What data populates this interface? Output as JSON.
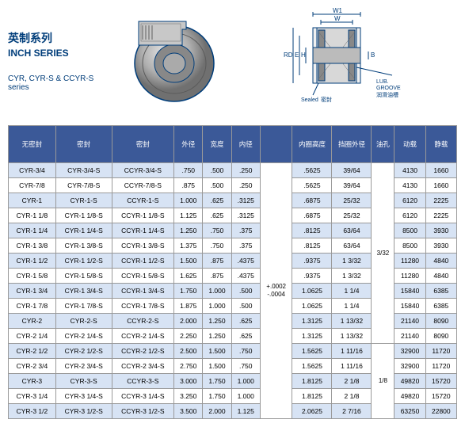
{
  "header": {
    "chinese_title": "英制系列",
    "inch_title": "INCH SERIES",
    "series_label": "CYR, CYR-S & CCYR-S series"
  },
  "diagram": {
    "w1": "W1",
    "w": "W",
    "rd": "RD",
    "e": "E",
    "h": "H",
    "b": "B",
    "sealed_en": "Sealed",
    "sealed_cn": "密封",
    "lub_en": "LUB. GROOVE",
    "lub_cn": "润滑油槽",
    "bearing_fill": "#cccccc",
    "bearing_stroke": "#003d7a",
    "diagram_stroke": "#003d7a"
  },
  "table": {
    "header_bg": "#3b5998",
    "row_alt_bg": "#d7e3f4",
    "headers": [
      "无密封",
      "密封",
      "密封",
      "外径",
      "宽度",
      "内径",
      "",
      "内圈高度",
      "挡圈外径",
      "油孔",
      "动载",
      "静载"
    ],
    "tolerance": {
      "plus": "+.0002",
      "minus": "-.0004"
    },
    "oilhole1": "3/32",
    "oilhole2": "1/8",
    "rows": [
      [
        "CYR-3/4",
        "CYR-3/4-S",
        "CCYR-3/4-S",
        ".750",
        ".500",
        ".250",
        ".5625",
        "39/64",
        "4130",
        "1660"
      ],
      [
        "CYR-7/8",
        "CYR-7/8-S",
        "CCYR-7/8-S",
        ".875",
        ".500",
        ".250",
        ".5625",
        "39/64",
        "4130",
        "1660"
      ],
      [
        "CYR-1",
        "CYR-1-S",
        "CCYR-1-S",
        "1.000",
        ".625",
        ".3125",
        ".6875",
        "25/32",
        "6120",
        "2225"
      ],
      [
        "CYR-1 1/8",
        "CYR-1 1/8-S",
        "CCYR-1 1/8-S",
        "1.125",
        ".625",
        ".3125",
        ".6875",
        "25/32",
        "6120",
        "2225"
      ],
      [
        "CYR-1 1/4",
        "CYR-1 1/4-S",
        "CCYR-1 1/4-S",
        "1.250",
        ".750",
        ".375",
        ".8125",
        "63/64",
        "8500",
        "3930"
      ],
      [
        "CYR-1 3/8",
        "CYR-1 3/8-S",
        "CCYR-1 3/8-S",
        "1.375",
        ".750",
        ".375",
        ".8125",
        "63/64",
        "8500",
        "3930"
      ],
      [
        "CYR-1 1/2",
        "CYR-1 1/2-S",
        "CCYR-1 1/2-S",
        "1.500",
        ".875",
        ".4375",
        ".9375",
        "1 3/32",
        "11280",
        "4840"
      ],
      [
        "CYR-1 5/8",
        "CYR-1 5/8-S",
        "CCYR-1 5/8-S",
        "1.625",
        ".875",
        ".4375",
        ".9375",
        "1 3/32",
        "11280",
        "4840"
      ],
      [
        "CYR-1 3/4",
        "CYR-1 3/4-S",
        "CCYR-1 3/4-S",
        "1.750",
        "1.000",
        ".500",
        "1.0625",
        "1 1/4",
        "15840",
        "6385"
      ],
      [
        "CYR-1 7/8",
        "CYR-1 7/8-S",
        "CCYR-1 7/8-S",
        "1.875",
        "1.000",
        ".500",
        "1.0625",
        "1 1/4",
        "15840",
        "6385"
      ],
      [
        "CYR-2",
        "CYR-2-S",
        "CCYR-2-S",
        "2.000",
        "1.250",
        ".625",
        "1.3125",
        "1 13/32",
        "21140",
        "8090"
      ],
      [
        "CYR-2 1/4",
        "CYR-2 1/4-S",
        "CCYR-2 1/4-S",
        "2.250",
        "1.250",
        ".625",
        "1.3125",
        "1 13/32",
        "21140",
        "8090"
      ],
      [
        "CYR-2 1/2",
        "CYR-2 1/2-S",
        "CCYR-2 1/2-S",
        "2.500",
        "1.500",
        ".750",
        "1.5625",
        "1 11/16",
        "32900",
        "11720"
      ],
      [
        "CYR-2 3/4",
        "CYR-2 3/4-S",
        "CCYR-2 3/4-S",
        "2.750",
        "1.500",
        ".750",
        "1.5625",
        "1 11/16",
        "32900",
        "11720"
      ],
      [
        "CYR-3",
        "CYR-3-S",
        "CCYR-3-S",
        "3.000",
        "1.750",
        "1.000",
        "1.8125",
        "2 1/8",
        "49820",
        "15720"
      ],
      [
        "CYR-3 1/4",
        "CYR-3 1/4-S",
        "CCYR-3 1/4-S",
        "3.250",
        "1.750",
        "1.000",
        "1.8125",
        "2 1/8",
        "49820",
        "15720"
      ],
      [
        "CYR-3 1/2",
        "CYR-3 1/2-S",
        "CCYR-3 1/2-S",
        "3.500",
        "2.000",
        "1.125",
        "2.0625",
        "2 7/16",
        "63250",
        "22800"
      ]
    ]
  }
}
